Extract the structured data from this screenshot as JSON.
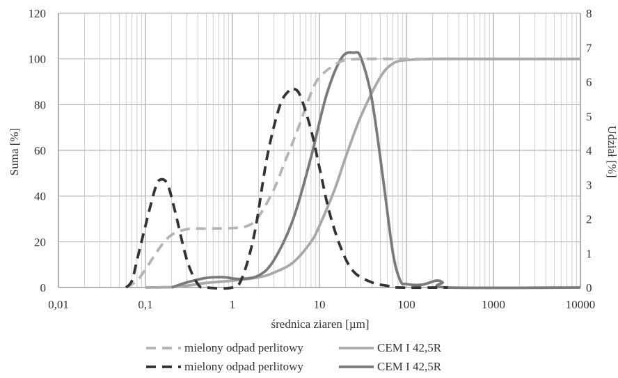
{
  "chart_data": {
    "type": "line",
    "xlabel": "średnica ziaren [µm]",
    "ylabel": "Suma [%]",
    "y2label": "Udział [%]",
    "xscale": "log",
    "xlim": [
      0.01,
      10000
    ],
    "ylim": [
      0,
      120
    ],
    "y2lim": [
      0,
      8
    ],
    "grid": true,
    "legend_position": "bottom",
    "x_ticks": [
      "0,01",
      "0,1",
      "1",
      "10",
      "100",
      "1000",
      "10000"
    ],
    "y_ticks": [
      "0",
      "20",
      "40",
      "60",
      "80",
      "100",
      "120"
    ],
    "y2_ticks": [
      "0",
      "1",
      "2",
      "3",
      "4",
      "5",
      "6",
      "7",
      "8"
    ],
    "series": [
      {
        "name": "mielony odpad perlitowy",
        "axis": "left",
        "style": "dashed",
        "color": "#b4b4b4",
        "points": [
          [
            0.06,
            0
          ],
          [
            0.08,
            3
          ],
          [
            0.1,
            8
          ],
          [
            0.15,
            18
          ],
          [
            0.2,
            23
          ],
          [
            0.3,
            25.5
          ],
          [
            0.5,
            25.8
          ],
          [
            1,
            26
          ],
          [
            1.5,
            27
          ],
          [
            2,
            31
          ],
          [
            3,
            43
          ],
          [
            4,
            55
          ],
          [
            5,
            64
          ],
          [
            6,
            72
          ],
          [
            8,
            85
          ],
          [
            10,
            92
          ],
          [
            15,
            97.5
          ],
          [
            20,
            99.5
          ],
          [
            30,
            100
          ],
          [
            100,
            100
          ],
          [
            200,
            100
          ]
        ]
      },
      {
        "name": "CEM I 42,5R",
        "axis": "left",
        "style": "solid",
        "color": "#a8a8a8",
        "points": [
          [
            0.1,
            0
          ],
          [
            0.2,
            0.2
          ],
          [
            0.3,
            0.8
          ],
          [
            0.5,
            2
          ],
          [
            1,
            3
          ],
          [
            2,
            4.5
          ],
          [
            3,
            6.5
          ],
          [
            5,
            11
          ],
          [
            8,
            20
          ],
          [
            10,
            27
          ],
          [
            15,
            43
          ],
          [
            20,
            57
          ],
          [
            30,
            75
          ],
          [
            50,
            92
          ],
          [
            70,
            98
          ],
          [
            100,
            99.5
          ],
          [
            200,
            100
          ],
          [
            1000,
            100
          ],
          [
            10000,
            100
          ]
        ]
      },
      {
        "name": "mielony odpad perlitowy",
        "axis": "right",
        "style": "dashed",
        "color": "#333333",
        "points": [
          [
            0.06,
            0
          ],
          [
            0.07,
            0.2
          ],
          [
            0.08,
            0.8
          ],
          [
            0.1,
            1.8
          ],
          [
            0.13,
            2.9
          ],
          [
            0.15,
            3.15
          ],
          [
            0.18,
            3.0
          ],
          [
            0.22,
            2.2
          ],
          [
            0.3,
            0.8
          ],
          [
            0.4,
            0.1
          ],
          [
            0.5,
            0
          ],
          [
            1.0,
            0
          ],
          [
            1.3,
            0.3
          ],
          [
            1.8,
            1.6
          ],
          [
            2.5,
            3.8
          ],
          [
            3.5,
            5.3
          ],
          [
            4.5,
            5.75
          ],
          [
            5,
            5.8
          ],
          [
            6,
            5.6
          ],
          [
            8,
            4.6
          ],
          [
            10,
            3.5
          ],
          [
            13,
            2.2
          ],
          [
            18,
            1.1
          ],
          [
            25,
            0.45
          ],
          [
            40,
            0.15
          ],
          [
            60,
            0.05
          ],
          [
            80,
            0
          ],
          [
            300,
            0
          ]
        ]
      },
      {
        "name": "CEM I 42,5R",
        "axis": "right",
        "style": "solid",
        "color": "#7a7a7a",
        "points": [
          [
            0.2,
            0
          ],
          [
            0.3,
            0.15
          ],
          [
            0.5,
            0.28
          ],
          [
            0.8,
            0.3
          ],
          [
            1.2,
            0.25
          ],
          [
            2,
            0.35
          ],
          [
            3,
            0.8
          ],
          [
            5,
            2.0
          ],
          [
            8,
            3.8
          ],
          [
            12,
            5.6
          ],
          [
            18,
            6.7
          ],
          [
            25,
            6.85
          ],
          [
            30,
            6.7
          ],
          [
            40,
            5.5
          ],
          [
            55,
            3.0
          ],
          [
            70,
            1.0
          ],
          [
            85,
            0.2
          ],
          [
            100,
            0.1
          ],
          [
            150,
            0.08
          ],
          [
            220,
            0.2
          ],
          [
            260,
            0.15
          ],
          [
            300,
            0
          ],
          [
            10000,
            0
          ]
        ]
      }
    ]
  }
}
